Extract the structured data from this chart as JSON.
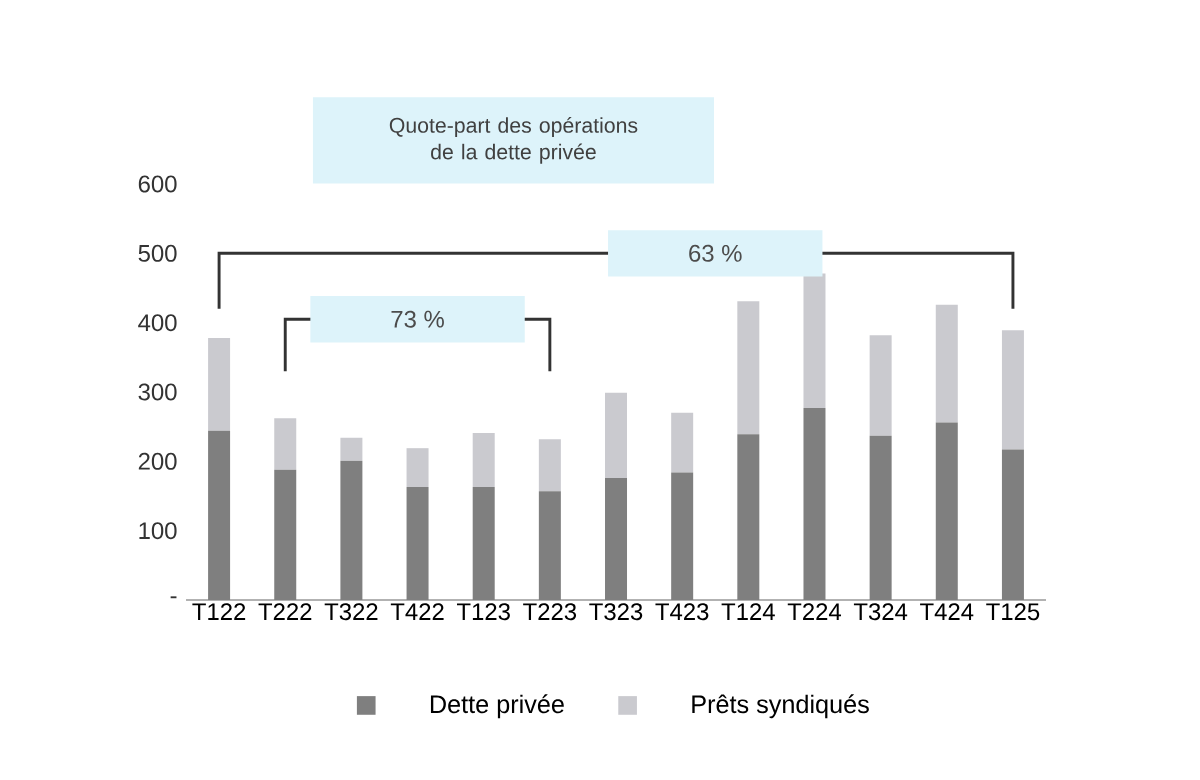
{
  "chart_data": {
    "type": "bar",
    "stacked": true,
    "categories": [
      "T122",
      "T222",
      "T322",
      "T422",
      "T123",
      "T223",
      "T323",
      "T423",
      "T124",
      "T224",
      "T324",
      "T424",
      "T125"
    ],
    "series": [
      {
        "name": "Dette privée",
        "color": "#7f7f7f",
        "values": [
          244,
          188,
          201,
          163,
          163,
          157,
          176,
          184,
          239,
          277,
          237,
          256,
          217
        ]
      },
      {
        "name": "Prêts syndiqués",
        "color": "#cacacf",
        "values": [
          134,
          74,
          33,
          56,
          78,
          75,
          123,
          86,
          192,
          194,
          145,
          170,
          172
        ]
      }
    ],
    "ylim": [
      0,
      600
    ],
    "yticks": [
      {
        "value": 0,
        "label": "-"
      },
      100,
      200,
      300,
      400,
      500,
      600
    ],
    "annotations": [
      "Quote-part des opérations de la dette privée",
      "73 %",
      "63 %"
    ],
    "legend": "bottom",
    "grid": false
  }
}
